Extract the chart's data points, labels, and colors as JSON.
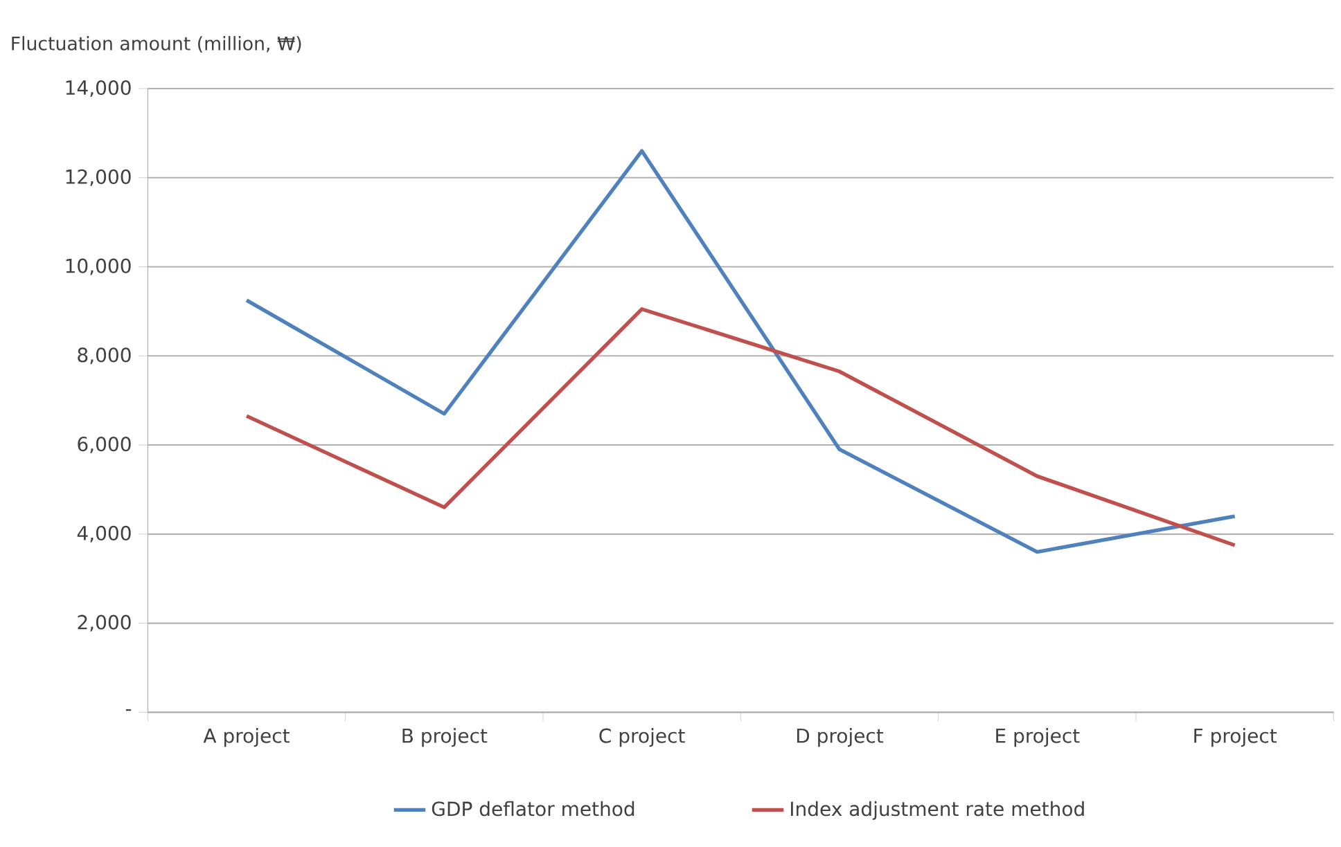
{
  "chart_data": {
    "type": "line",
    "ylabel": "Fluctuation amount (million, ₩)",
    "categories": [
      "A project",
      "B project",
      "C project",
      "D project",
      "E project",
      "F project"
    ],
    "series": [
      {
        "name": "GDP deflator method",
        "color": "#4f81bd",
        "values": [
          9250,
          6700,
          12600,
          5900,
          3600,
          4400
        ]
      },
      {
        "name": "Index adjustment rate method",
        "color": "#c0504d",
        "values": [
          6650,
          4600,
          9050,
          7650,
          5300,
          3750
        ]
      }
    ],
    "ylim": [
      0,
      14000
    ],
    "yticks": [
      {
        "value": 0,
        "label": "-"
      },
      {
        "value": 2000,
        "label": "2,000"
      },
      {
        "value": 4000,
        "label": "4,000"
      },
      {
        "value": 6000,
        "label": "6,000"
      },
      {
        "value": 8000,
        "label": "8,000"
      },
      {
        "value": 10000,
        "label": "10,000"
      },
      {
        "value": 12000,
        "label": "12,000"
      },
      {
        "value": 14000,
        "label": "14,000"
      }
    ],
    "grid": "y",
    "legend": "bottom",
    "marker": "none",
    "line_style": "solid"
  }
}
